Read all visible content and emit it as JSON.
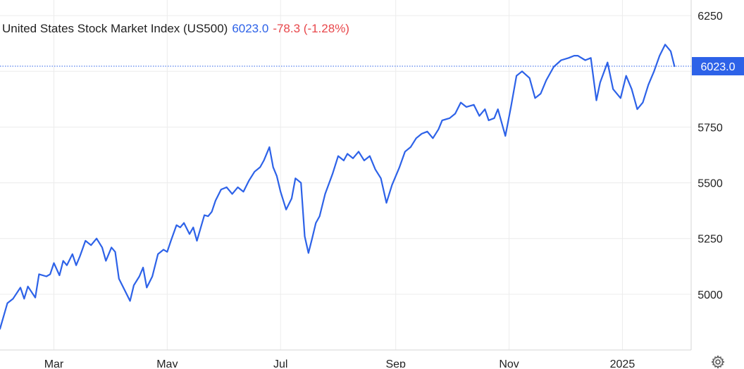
{
  "header": {
    "title": "United States Stock Market Index (US500)",
    "price": "6023.0",
    "change": "-78.3 (-1.28%)"
  },
  "colors": {
    "line": "#2d62e8",
    "price": "#2d62e8",
    "negative": "#e8474b",
    "grid": "#ececec",
    "text": "#222222"
  },
  "icons": {
    "settings": "gear-icon"
  },
  "chart_data": {
    "type": "line",
    "title": "United States Stock Market Index (US500)",
    "last_value_label": "6023.0",
    "y_ticks": [
      5000,
      5250,
      5500,
      5750,
      6000,
      6250
    ],
    "y_tick_labels": [
      "5000",
      "5250",
      "5500",
      "5750",
      "",
      "6250"
    ],
    "ylim": [
      4750,
      6320
    ],
    "x_ticks": [
      {
        "label": "Mar",
        "date": "2024-03-01"
      },
      {
        "label": "May",
        "date": "2024-05-01"
      },
      {
        "label": "Jul",
        "date": "2024-07-01"
      },
      {
        "label": "Sep",
        "date": "2024-09-01"
      },
      {
        "label": "Nov",
        "date": "2024-11-01"
      },
      {
        "label": "2025",
        "date": "2025-01-01"
      }
    ],
    "xlim": [
      "2024-02-01",
      "2025-02-07"
    ],
    "grid": true,
    "series": [
      {
        "points": [
          [
            "2024-02-01",
            4845
          ],
          [
            "2024-02-05",
            4960
          ],
          [
            "2024-02-08",
            4980
          ],
          [
            "2024-02-12",
            5030
          ],
          [
            "2024-02-14",
            4980
          ],
          [
            "2024-02-16",
            5035
          ],
          [
            "2024-02-20",
            4985
          ],
          [
            "2024-02-22",
            5090
          ],
          [
            "2024-02-26",
            5080
          ],
          [
            "2024-02-28",
            5090
          ],
          [
            "2024-03-01",
            5140
          ],
          [
            "2024-03-04",
            5085
          ],
          [
            "2024-03-06",
            5150
          ],
          [
            "2024-03-08",
            5130
          ],
          [
            "2024-03-11",
            5180
          ],
          [
            "2024-03-13",
            5130
          ],
          [
            "2024-03-15",
            5170
          ],
          [
            "2024-03-18",
            5240
          ],
          [
            "2024-03-21",
            5220
          ],
          [
            "2024-03-24",
            5250
          ],
          [
            "2024-03-27",
            5210
          ],
          [
            "2024-03-29",
            5150
          ],
          [
            "2024-04-01",
            5210
          ],
          [
            "2024-04-03",
            5190
          ],
          [
            "2024-04-05",
            5070
          ],
          [
            "2024-04-08",
            5020
          ],
          [
            "2024-04-11",
            4970
          ],
          [
            "2024-04-13",
            5040
          ],
          [
            "2024-04-16",
            5080
          ],
          [
            "2024-04-18",
            5120
          ],
          [
            "2024-04-20",
            5030
          ],
          [
            "2024-04-23",
            5080
          ],
          [
            "2024-04-26",
            5180
          ],
          [
            "2024-04-29",
            5200
          ],
          [
            "2024-05-01",
            5190
          ],
          [
            "2024-05-03",
            5240
          ],
          [
            "2024-05-06",
            5310
          ],
          [
            "2024-05-08",
            5300
          ],
          [
            "2024-05-10",
            5320
          ],
          [
            "2024-05-13",
            5270
          ],
          [
            "2024-05-15",
            5300
          ],
          [
            "2024-05-17",
            5240
          ],
          [
            "2024-05-21",
            5355
          ],
          [
            "2024-05-23",
            5350
          ],
          [
            "2024-05-25",
            5370
          ],
          [
            "2024-05-27",
            5420
          ],
          [
            "2024-05-30",
            5470
          ],
          [
            "2024-06-02",
            5480
          ],
          [
            "2024-06-05",
            5450
          ],
          [
            "2024-06-08",
            5480
          ],
          [
            "2024-06-11",
            5460
          ],
          [
            "2024-06-14",
            5510
          ],
          [
            "2024-06-17",
            5550
          ],
          [
            "2024-06-20",
            5570
          ],
          [
            "2024-06-22",
            5600
          ],
          [
            "2024-06-25",
            5660
          ],
          [
            "2024-06-27",
            5570
          ],
          [
            "2024-06-29",
            5530
          ],
          [
            "2024-07-01",
            5460
          ],
          [
            "2024-07-04",
            5380
          ],
          [
            "2024-07-07",
            5430
          ],
          [
            "2024-07-09",
            5520
          ],
          [
            "2024-07-12",
            5500
          ],
          [
            "2024-07-14",
            5260
          ],
          [
            "2024-07-16",
            5185
          ],
          [
            "2024-07-18",
            5250
          ],
          [
            "2024-07-20",
            5320
          ],
          [
            "2024-07-22",
            5350
          ],
          [
            "2024-07-25",
            5450
          ],
          [
            "2024-07-29",
            5540
          ],
          [
            "2024-08-01",
            5620
          ],
          [
            "2024-08-04",
            5600
          ],
          [
            "2024-08-06",
            5630
          ],
          [
            "2024-08-09",
            5610
          ],
          [
            "2024-08-12",
            5640
          ],
          [
            "2024-08-15",
            5600
          ],
          [
            "2024-08-18",
            5620
          ],
          [
            "2024-08-21",
            5560
          ],
          [
            "2024-08-24",
            5520
          ],
          [
            "2024-08-27",
            5410
          ],
          [
            "2024-08-30",
            5490
          ],
          [
            "2024-09-03",
            5570
          ],
          [
            "2024-09-06",
            5640
          ],
          [
            "2024-09-09",
            5660
          ],
          [
            "2024-09-12",
            5700
          ],
          [
            "2024-09-15",
            5720
          ],
          [
            "2024-09-18",
            5730
          ],
          [
            "2024-09-21",
            5700
          ],
          [
            "2024-09-24",
            5740
          ],
          [
            "2024-09-26",
            5780
          ],
          [
            "2024-09-30",
            5790
          ],
          [
            "2024-10-03",
            5810
          ],
          [
            "2024-10-06",
            5860
          ],
          [
            "2024-10-09",
            5840
          ],
          [
            "2024-10-13",
            5850
          ],
          [
            "2024-10-16",
            5800
          ],
          [
            "2024-10-19",
            5830
          ],
          [
            "2024-10-21",
            5780
          ],
          [
            "2024-10-24",
            5790
          ],
          [
            "2024-10-26",
            5830
          ],
          [
            "2024-10-28",
            5770
          ],
          [
            "2024-10-30",
            5710
          ],
          [
            "2024-11-02",
            5840
          ],
          [
            "2024-11-05",
            5980
          ],
          [
            "2024-11-08",
            6000
          ],
          [
            "2024-11-12",
            5970
          ],
          [
            "2024-11-15",
            5880
          ],
          [
            "2024-11-18",
            5900
          ],
          [
            "2024-11-21",
            5960
          ],
          [
            "2024-11-25",
            6020
          ],
          [
            "2024-11-29",
            6050
          ],
          [
            "2024-12-03",
            6060
          ],
          [
            "2024-12-06",
            6070
          ],
          [
            "2024-12-08",
            6070
          ],
          [
            "2024-12-12",
            6050
          ],
          [
            "2024-12-15",
            6060
          ],
          [
            "2024-12-18",
            5870
          ],
          [
            "2024-12-20",
            5950
          ],
          [
            "2024-12-24",
            6040
          ],
          [
            "2024-12-27",
            5920
          ],
          [
            "2024-12-31",
            5880
          ],
          [
            "2025-01-03",
            5980
          ],
          [
            "2025-01-06",
            5920
          ],
          [
            "2025-01-09",
            5830
          ],
          [
            "2025-01-12",
            5860
          ],
          [
            "2025-01-15",
            5940
          ],
          [
            "2025-01-18",
            6000
          ],
          [
            "2025-01-21",
            6070
          ],
          [
            "2025-01-24",
            6120
          ],
          [
            "2025-01-27",
            6090
          ],
          [
            "2025-01-29",
            6023
          ]
        ]
      }
    ]
  }
}
